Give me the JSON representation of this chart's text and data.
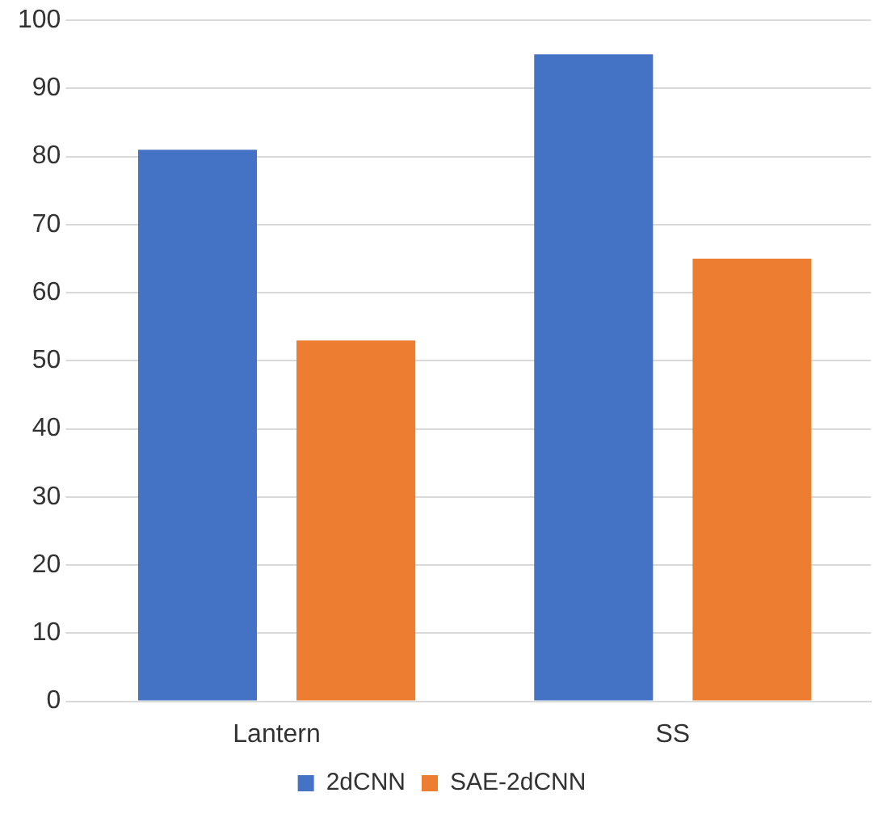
{
  "chart_data": {
    "type": "bar",
    "categories": [
      "Lantern",
      "SS"
    ],
    "series": [
      {
        "name": "2dCNN",
        "color": "#4472c4",
        "values": [
          81,
          95
        ]
      },
      {
        "name": "SAE-2dCNN",
        "color": "#ed7d31",
        "values": [
          53,
          65
        ]
      }
    ],
    "ylim": [
      0,
      100
    ],
    "yticks": [
      0,
      10,
      20,
      30,
      40,
      50,
      60,
      70,
      80,
      90,
      100
    ],
    "grid": "y",
    "legend": "bottom"
  }
}
